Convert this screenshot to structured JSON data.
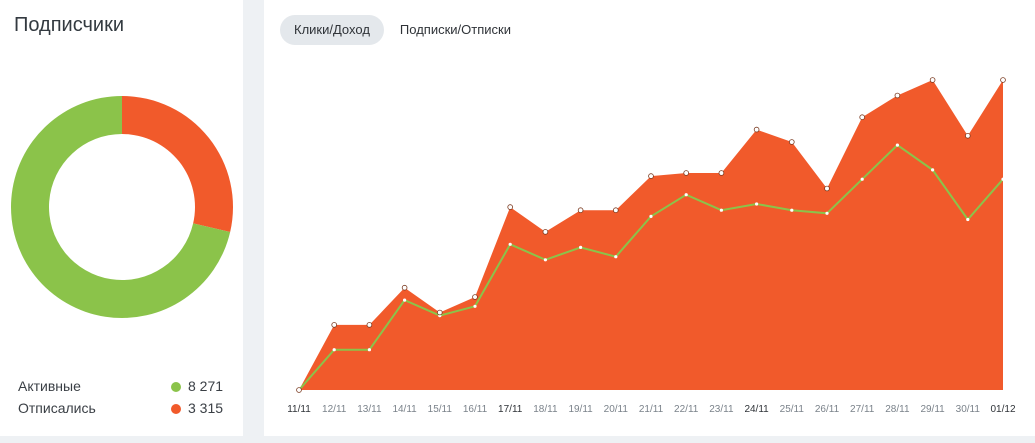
{
  "subscribers": {
    "title": "Подписчики",
    "legend": [
      {
        "label": "Активные",
        "value": "8 271",
        "color": "#8bc34a"
      },
      {
        "label": "Отписались",
        "value": "3 315",
        "color": "#f15a2b"
      }
    ]
  },
  "tabs": [
    {
      "label": "Клики/Доход",
      "active": true
    },
    {
      "label": "Подписки/Отписки",
      "active": false
    }
  ],
  "colors": {
    "area": "#f15a2b",
    "line": "#8bc34a",
    "active": "#8bc34a",
    "unsubscribed": "#f15a2b"
  },
  "chart_data": [
    {
      "type": "pie",
      "categories": [
        "Активные",
        "Отписались"
      ],
      "values": [
        8271,
        3315
      ]
    },
    {
      "type": "area",
      "categories": [
        "11/11",
        "12/11",
        "13/11",
        "14/11",
        "15/11",
        "16/11",
        "17/11",
        "18/11",
        "19/11",
        "20/11",
        "21/11",
        "22/11",
        "23/11",
        "24/11",
        "25/11",
        "26/11",
        "27/11",
        "28/11",
        "29/11",
        "30/11",
        "01/12"
      ],
      "bold_ticks": [
        "11/11",
        "17/11",
        "24/11",
        "01/12"
      ],
      "series": [
        {
          "type": "area",
          "values": [
            0,
            21,
            21,
            33,
            25,
            30,
            59,
            51,
            58,
            58,
            69,
            70,
            70,
            84,
            80,
            65,
            88,
            95,
            100,
            82,
            100
          ]
        },
        {
          "type": "line",
          "values": [
            0,
            13,
            13,
            29,
            24,
            27,
            47,
            42,
            46,
            43,
            56,
            63,
            58,
            60,
            58,
            57,
            68,
            79,
            71,
            55,
            68
          ]
        }
      ],
      "ylim": [
        0,
        100
      ],
      "grid": false
    }
  ]
}
